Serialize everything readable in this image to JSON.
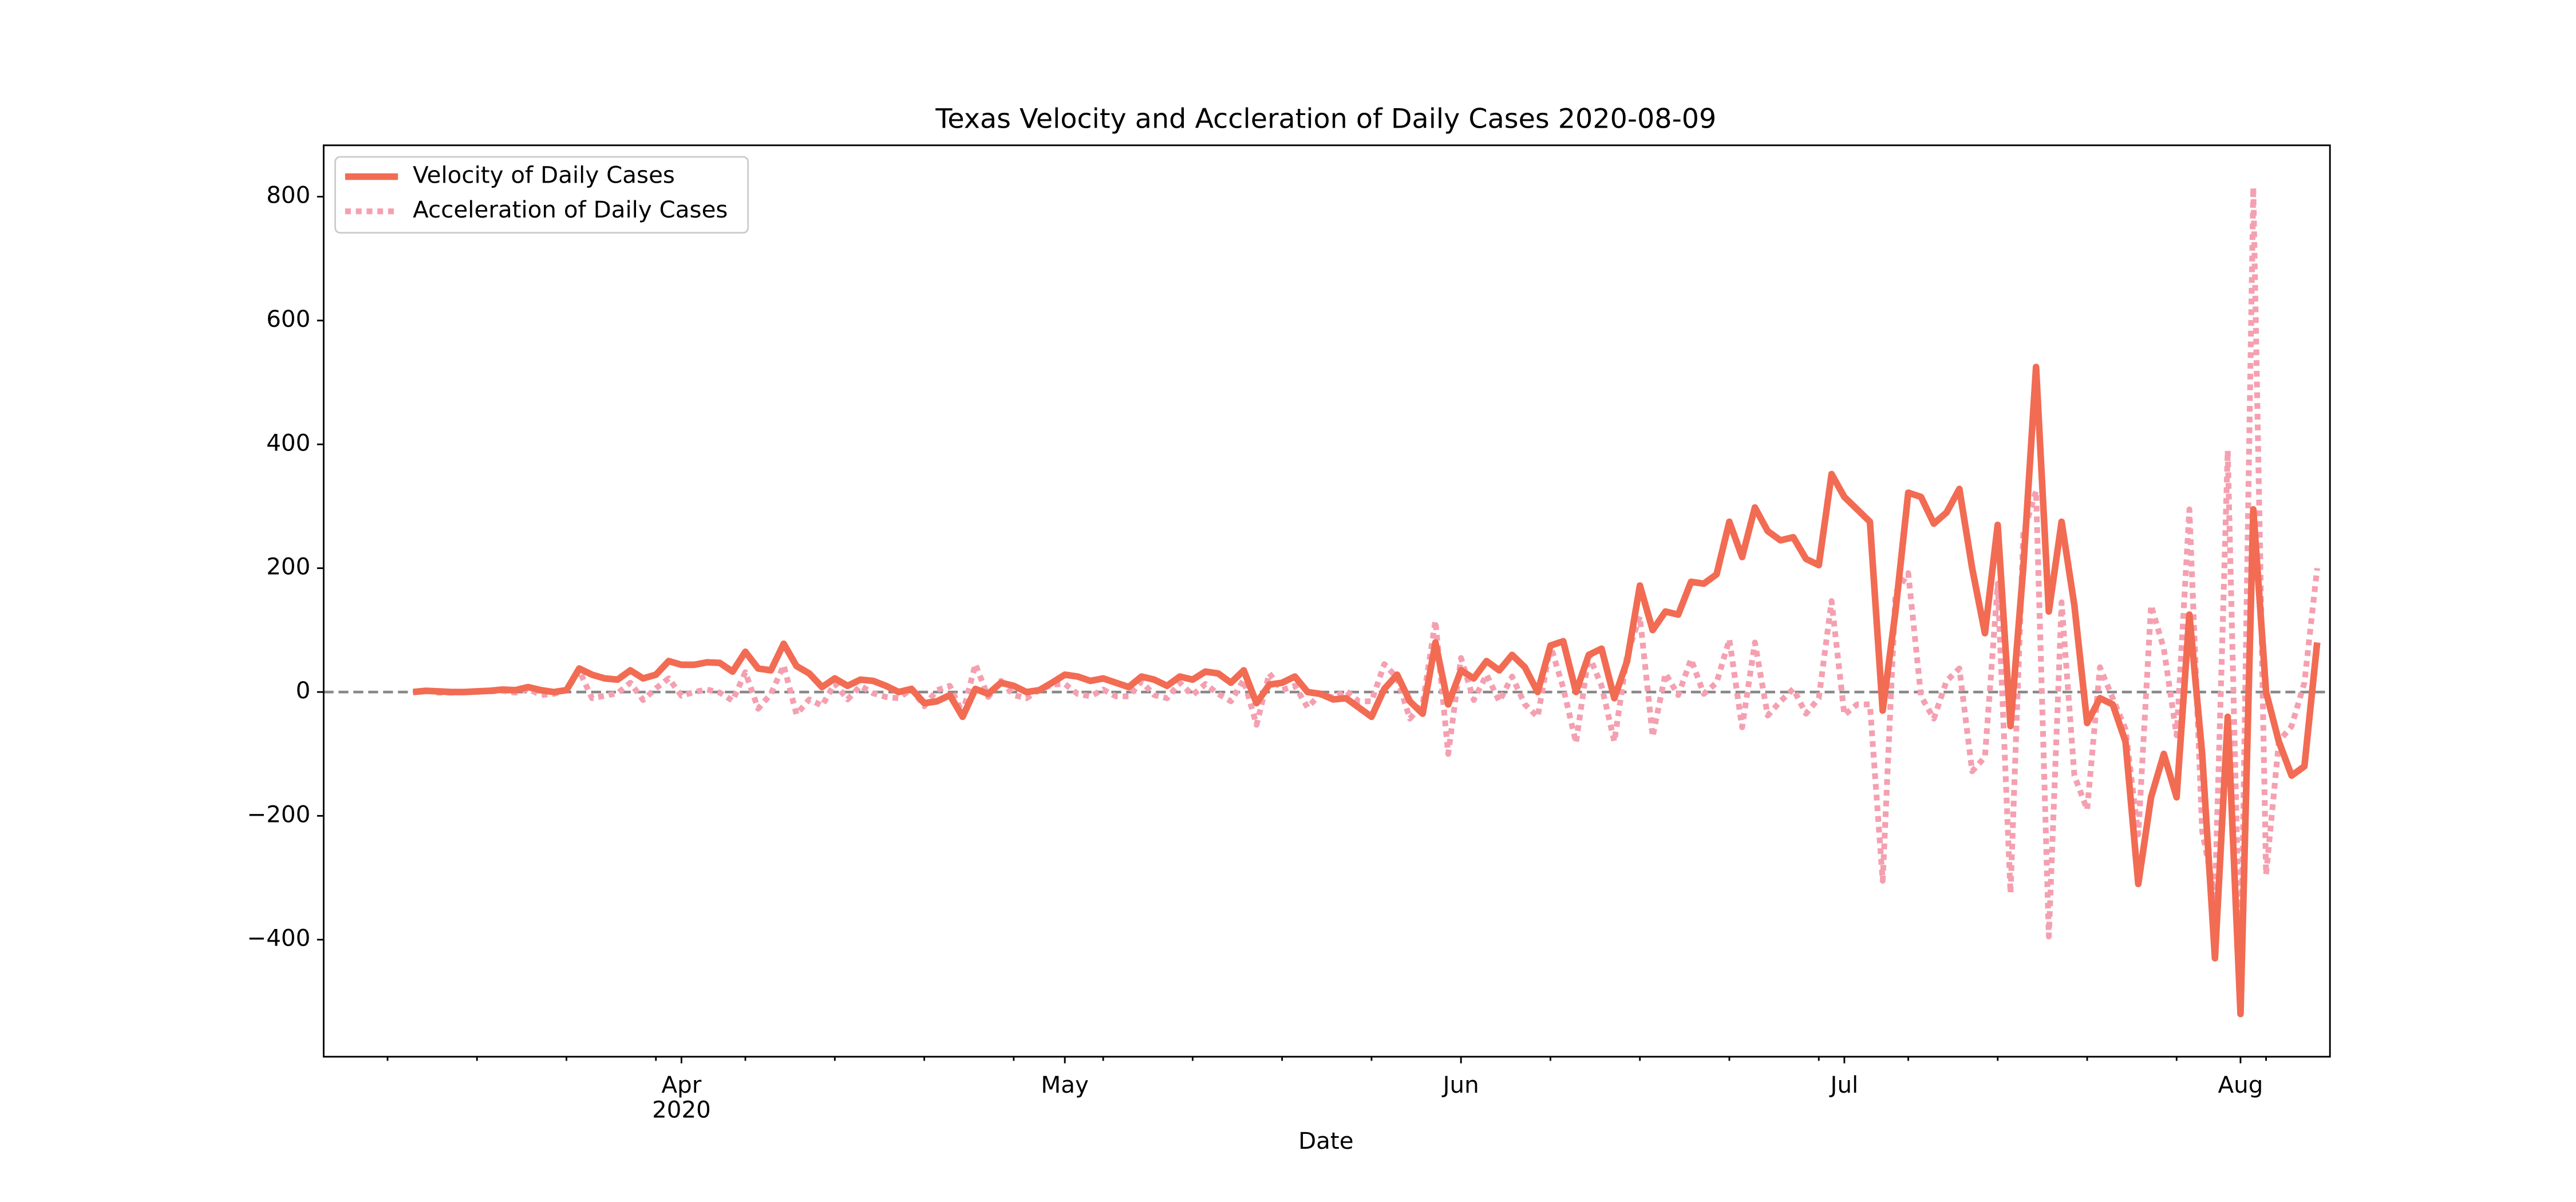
{
  "chart_data": {
    "type": "line",
    "title": "Texas Velocity and Accleration of Daily Cases 2020-08-09",
    "xlabel": "Date",
    "x": [
      "2020-03-11",
      "2020-03-12",
      "2020-03-13",
      "2020-03-14",
      "2020-03-15",
      "2020-03-16",
      "2020-03-17",
      "2020-03-18",
      "2020-03-19",
      "2020-03-20",
      "2020-03-21",
      "2020-03-22",
      "2020-03-23",
      "2020-03-24",
      "2020-03-25",
      "2020-03-26",
      "2020-03-27",
      "2020-03-28",
      "2020-03-29",
      "2020-03-30",
      "2020-03-31",
      "2020-04-01",
      "2020-04-02",
      "2020-04-03",
      "2020-04-04",
      "2020-04-05",
      "2020-04-06",
      "2020-04-07",
      "2020-04-08",
      "2020-04-09",
      "2020-04-10",
      "2020-04-11",
      "2020-04-12",
      "2020-04-13",
      "2020-04-14",
      "2020-04-15",
      "2020-04-16",
      "2020-04-17",
      "2020-04-18",
      "2020-04-19",
      "2020-04-20",
      "2020-04-21",
      "2020-04-22",
      "2020-04-23",
      "2020-04-24",
      "2020-04-25",
      "2020-04-26",
      "2020-04-27",
      "2020-04-28",
      "2020-04-29",
      "2020-04-30",
      "2020-05-01",
      "2020-05-02",
      "2020-05-03",
      "2020-05-04",
      "2020-05-05",
      "2020-05-06",
      "2020-05-07",
      "2020-05-08",
      "2020-05-09",
      "2020-05-10",
      "2020-05-11",
      "2020-05-12",
      "2020-05-13",
      "2020-05-14",
      "2020-05-15",
      "2020-05-16",
      "2020-05-17",
      "2020-05-18",
      "2020-05-19",
      "2020-05-20",
      "2020-05-21",
      "2020-05-22",
      "2020-05-23",
      "2020-05-24",
      "2020-05-25",
      "2020-05-26",
      "2020-05-27",
      "2020-05-28",
      "2020-05-29",
      "2020-05-30",
      "2020-05-31",
      "2020-06-01",
      "2020-06-02",
      "2020-06-03",
      "2020-06-04",
      "2020-06-05",
      "2020-06-06",
      "2020-06-07",
      "2020-06-08",
      "2020-06-09",
      "2020-06-10",
      "2020-06-11",
      "2020-06-12",
      "2020-06-13",
      "2020-06-14",
      "2020-06-15",
      "2020-06-16",
      "2020-06-17",
      "2020-06-18",
      "2020-06-19",
      "2020-06-20",
      "2020-06-21",
      "2020-06-22",
      "2020-06-23",
      "2020-06-24",
      "2020-06-25",
      "2020-06-26",
      "2020-06-27",
      "2020-06-28",
      "2020-06-29",
      "2020-06-30",
      "2020-07-01",
      "2020-07-02",
      "2020-07-03",
      "2020-07-04",
      "2020-07-05",
      "2020-07-06",
      "2020-07-07",
      "2020-07-08",
      "2020-07-09",
      "2020-07-10",
      "2020-07-11",
      "2020-07-12",
      "2020-07-13",
      "2020-07-14",
      "2020-07-15",
      "2020-07-16",
      "2020-07-17",
      "2020-07-18",
      "2020-07-19",
      "2020-07-20",
      "2020-07-21",
      "2020-07-22",
      "2020-07-23",
      "2020-07-24",
      "2020-07-25",
      "2020-07-26",
      "2020-07-27",
      "2020-07-28",
      "2020-07-29",
      "2020-07-30",
      "2020-07-31",
      "2020-08-01",
      "2020-08-02",
      "2020-08-03",
      "2020-08-04",
      "2020-08-05",
      "2020-08-06",
      "2020-08-07"
    ],
    "series": [
      {
        "name": "Velocity of Daily Cases",
        "color": "#f26b53",
        "style": "solid",
        "values": [
          0,
          2,
          1,
          0,
          0,
          1,
          2,
          4,
          3,
          8,
          3,
          0,
          3,
          38,
          28,
          22,
          20,
          35,
          22,
          28,
          50,
          44,
          44,
          48,
          47,
          33,
          65,
          38,
          35,
          78,
          42,
          30,
          8,
          22,
          10,
          20,
          18,
          10,
          0,
          5,
          -18,
          -15,
          -5,
          -40,
          5,
          -3,
          15,
          10,
          0,
          3,
          15,
          28,
          25,
          18,
          22,
          15,
          8,
          25,
          20,
          10,
          25,
          20,
          33,
          30,
          15,
          35,
          -18,
          12,
          15,
          25,
          0,
          -3,
          -12,
          -10,
          -25,
          -40,
          5,
          28,
          -15,
          -35,
          80,
          -20,
          35,
          22,
          50,
          35,
          60,
          40,
          0,
          75,
          82,
          0,
          60,
          70,
          -10,
          50,
          172,
          100,
          130,
          125,
          178,
          175,
          190,
          275,
          218,
          298,
          260,
          245,
          250,
          215,
          205,
          352,
          315,
          295,
          275,
          -30,
          130,
          322,
          315,
          272,
          290,
          328,
          200,
          95,
          270,
          -55,
          200,
          525,
          130,
          275,
          140,
          -50,
          -10,
          -20,
          -80,
          -310,
          -170,
          -100,
          -170,
          125,
          -100,
          -430,
          -40,
          -520,
          295,
          0,
          -80,
          -135,
          -120,
          80
        ]
      },
      {
        "name": "Acceleration of Daily Cases",
        "color": "#f4a0b0",
        "style": "dotted",
        "values": [
          null,
          2,
          -1,
          -1,
          0,
          1,
          1,
          2,
          -1,
          5,
          -5,
          -3,
          3,
          35,
          -10,
          -6,
          -2,
          15,
          -13,
          6,
          22,
          -6,
          0,
          4,
          -1,
          -14,
          32,
          -27,
          -3,
          43,
          -36,
          -12,
          -22,
          14,
          -12,
          10,
          -2,
          -8,
          -10,
          5,
          -23,
          3,
          10,
          -35,
          45,
          -8,
          18,
          -5,
          -10,
          3,
          12,
          13,
          -3,
          -7,
          4,
          -7,
          -7,
          17,
          -5,
          -10,
          15,
          -5,
          13,
          -3,
          -15,
          20,
          -53,
          30,
          3,
          10,
          -25,
          -3,
          -9,
          2,
          -15,
          -15,
          45,
          23,
          -43,
          -20,
          115,
          -100,
          55,
          -13,
          28,
          -15,
          25,
          -20,
          -40,
          75,
          7,
          -82,
          60,
          10,
          -80,
          60,
          122,
          -72,
          30,
          -5,
          53,
          -3,
          15,
          85,
          -57,
          80,
          -38,
          -15,
          5,
          -35,
          -10,
          147,
          -37,
          -20,
          -20,
          -305,
          160,
          192,
          -7,
          -43,
          18,
          38,
          -128,
          -105,
          175,
          -325,
          255,
          325,
          -395,
          145,
          -135,
          -190,
          40,
          -10,
          -60,
          -230,
          140,
          70,
          -70,
          295,
          -225,
          -330,
          390,
          -480,
          815,
          -295,
          -80,
          -55,
          15,
          200
        ]
      }
    ],
    "xlim": [
      "2020-03-04",
      "2020-08-08"
    ],
    "xticks": [
      {
        "value": "2020-04-01",
        "label": "Apr"
      },
      {
        "value": "2020-05-01",
        "label": "May"
      },
      {
        "value": "2020-06-01",
        "label": "Jun"
      },
      {
        "value": "2020-07-01",
        "label": "Jul"
      },
      {
        "value": "2020-08-01",
        "label": "Aug"
      }
    ],
    "year_label": "2020",
    "xminorticks": [
      "2020-03-09",
      "2020-03-16",
      "2020-03-23",
      "2020-03-30",
      "2020-04-06",
      "2020-04-13",
      "2020-04-20",
      "2020-04-27",
      "2020-05-04",
      "2020-05-11",
      "2020-05-18",
      "2020-05-25",
      "2020-06-08",
      "2020-06-15",
      "2020-06-22",
      "2020-06-29",
      "2020-07-06",
      "2020-07-13",
      "2020-07-20",
      "2020-07-27",
      "2020-08-03"
    ],
    "ylim": [
      -589,
      883
    ],
    "yticks": [
      {
        "value": -400,
        "label": "−400"
      },
      {
        "value": -200,
        "label": "−200"
      },
      0,
      200,
      400,
      600,
      800
    ],
    "hline": 0,
    "legend": "upper left"
  }
}
